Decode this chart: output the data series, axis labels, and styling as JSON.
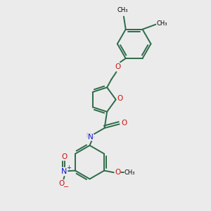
{
  "bg": "#ebebeb",
  "lc": "#2d6b4a",
  "oc": "#cc1111",
  "nc": "#1111cc",
  "bw": 1.4,
  "bw2": 0.9,
  "fs": 7.0,
  "aoff": 0.04,
  "xlim": [
    -1.5,
    1.7
  ],
  "ylim": [
    -2.0,
    2.2
  ]
}
